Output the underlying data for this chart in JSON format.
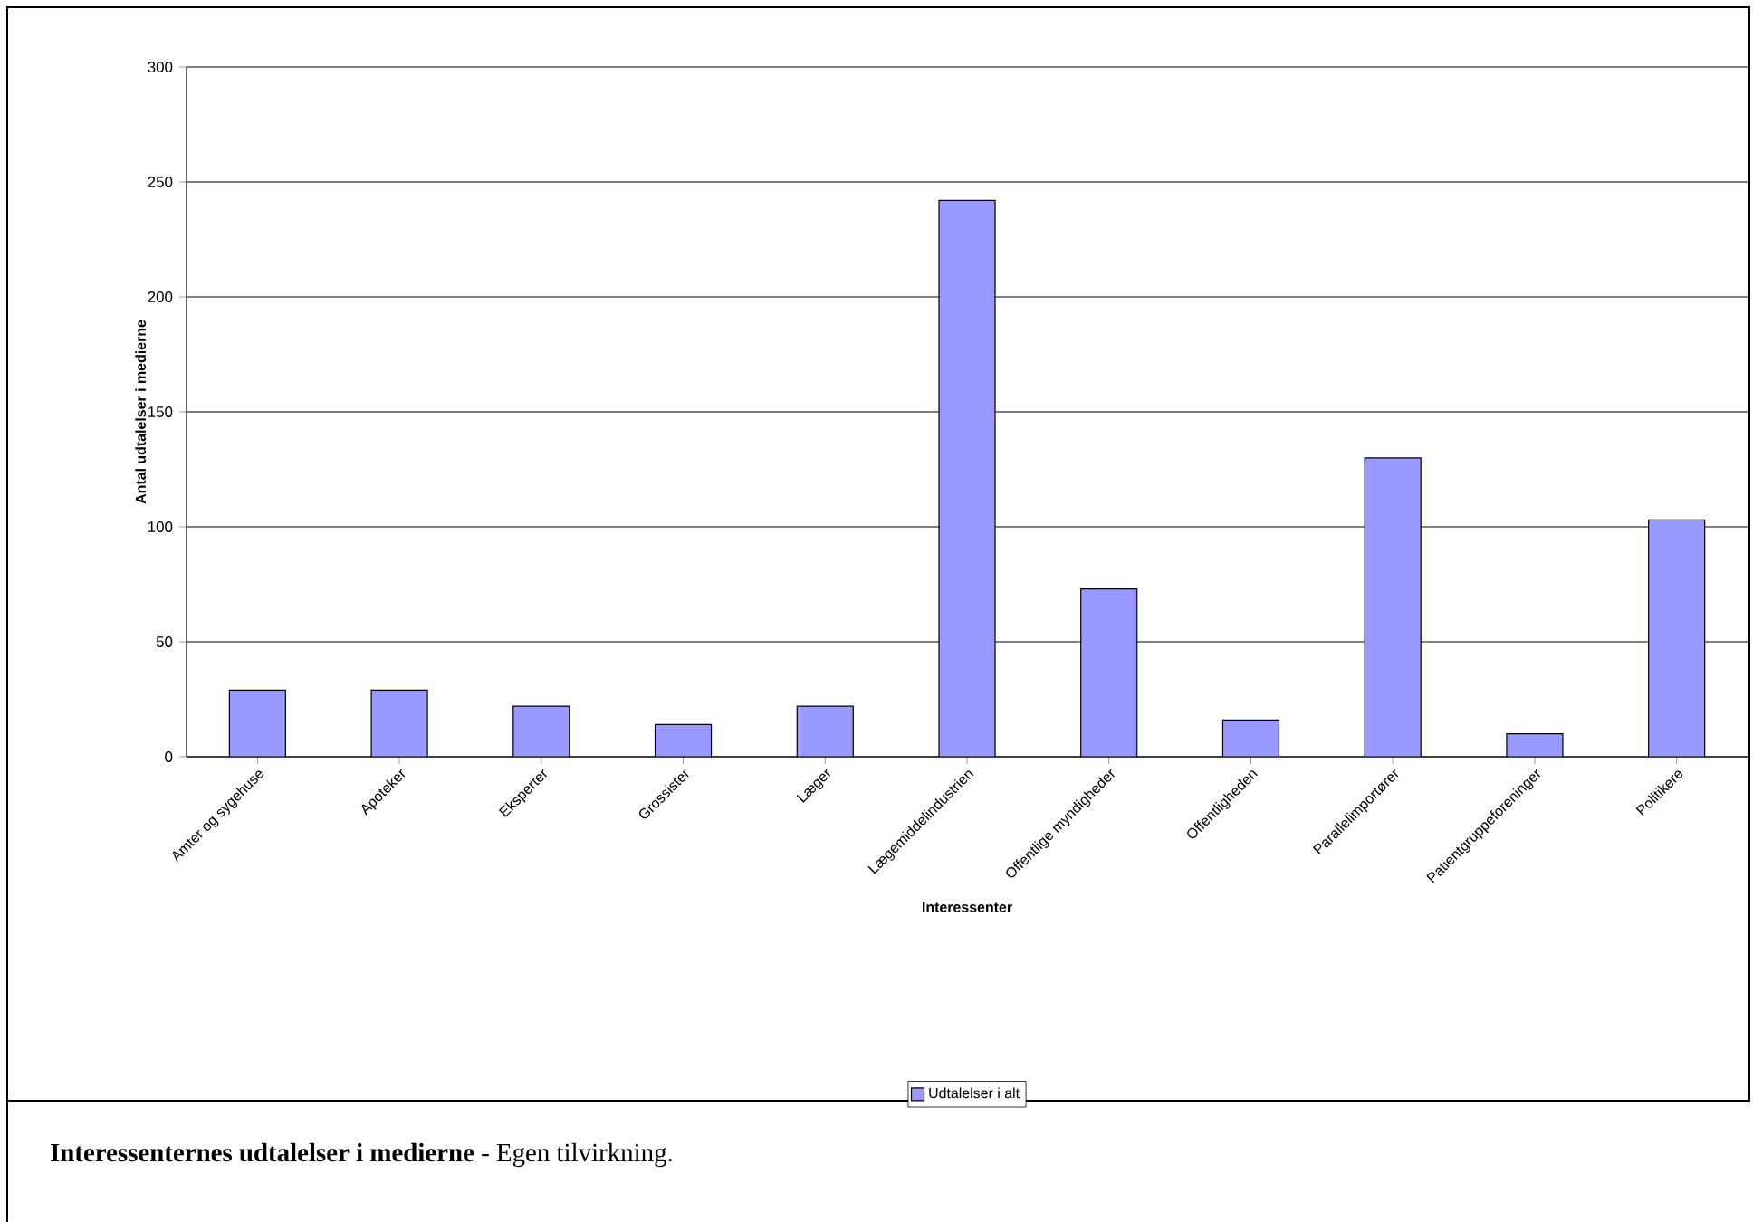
{
  "chart_data": {
    "type": "bar",
    "categories": [
      "Amter og sygehuse",
      "Apoteker",
      "Eksperter",
      "Grossister",
      "Læger",
      "Lægemiddelindustrien",
      "Offentlige myndigheder",
      "Offentligheden",
      "Parallelimportører",
      "Patientgruppeforeninger",
      "Politikere"
    ],
    "series": [
      {
        "name": "Udtalelser i alt",
        "color": "#9999ff",
        "values": [
          29,
          29,
          22,
          14,
          22,
          242,
          73,
          16,
          130,
          10,
          103
        ]
      }
    ],
    "xlabel": "Interessenter",
    "ylabel": "Antal udtalelser i medierne",
    "ylim": [
      0,
      300
    ],
    "yticks": [
      0,
      50,
      100,
      150,
      200,
      250,
      300
    ],
    "grid": "y",
    "legend": "bottom",
    "annotations": [
      "**Interessenternes udtalelser i medierne** - Egen tilvirkning."
    ]
  }
}
